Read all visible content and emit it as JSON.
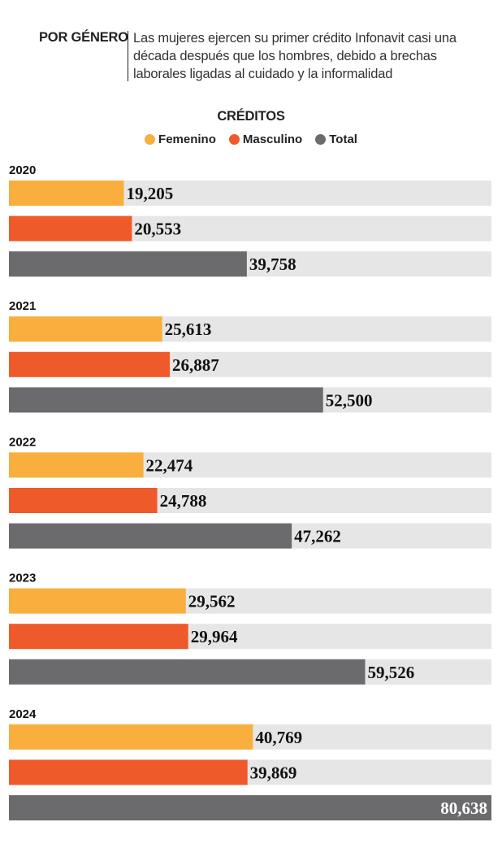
{
  "header": {
    "label": "POR GÉNERO",
    "description": "Las mujeres ejercen su primer crédito Infonavit casi una década después que los hombres, debido a brechas laborales ligadas al cuidado y la informalidad"
  },
  "colors": {
    "femenino": "#F9AE3E",
    "masculino": "#EF5A2A",
    "total": "#6B6B6D",
    "track": "#E6E6E7"
  },
  "chart_data": {
    "type": "bar",
    "title": "CRÉDITOS",
    "orientation": "horizontal",
    "legend": [
      "Femenino",
      "Masculino",
      "Total"
    ],
    "legend_position": "top-center",
    "xlim": [
      0,
      80638
    ],
    "categories": [
      "2020",
      "2021",
      "2022",
      "2023",
      "2024"
    ],
    "series": [
      {
        "name": "Femenino",
        "values": [
          19205,
          25613,
          22474,
          29562,
          40769
        ],
        "labels": [
          "19,205",
          "25,613",
          "22,474",
          "29,562",
          "40,769"
        ]
      },
      {
        "name": "Masculino",
        "values": [
          20553,
          26887,
          24788,
          29964,
          39869
        ],
        "labels": [
          "20,553",
          "26,887",
          "24,788",
          "29,964",
          "39,869"
        ]
      },
      {
        "name": "Total",
        "values": [
          39758,
          52500,
          47262,
          59526,
          80638
        ],
        "labels": [
          "39,758",
          "52,500",
          "47,262",
          "59,526",
          "80,638"
        ]
      }
    ]
  }
}
